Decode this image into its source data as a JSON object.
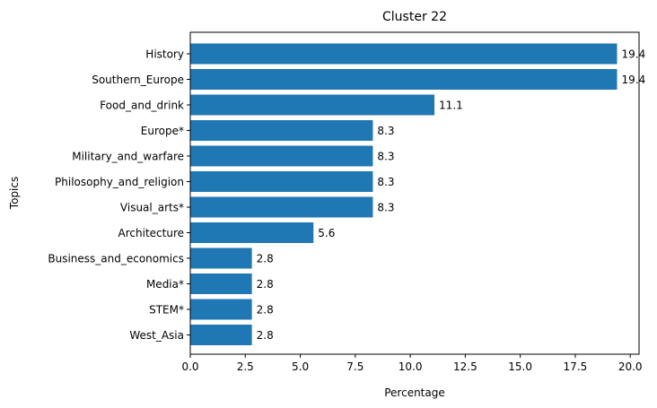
{
  "chart_data": {
    "type": "bar",
    "orientation": "horizontal",
    "title": "Cluster 22",
    "xlabel": "Percentage",
    "ylabel": "Topics",
    "categories": [
      "History",
      "Southern_Europe",
      "Food_and_drink",
      "Europe*",
      "Military_and_warfare",
      "Philosophy_and_religion",
      "Visual_arts*",
      "Architecture",
      "Business_and_economics",
      "Media*",
      "STEM*",
      "West_Asia"
    ],
    "values": [
      19.4,
      19.4,
      11.1,
      8.3,
      8.3,
      8.3,
      8.3,
      5.6,
      2.8,
      2.8,
      2.8,
      2.8
    ],
    "data_labels": [
      "19.4",
      "19.4",
      "11.1",
      "8.3",
      "8.3",
      "8.3",
      "8.3",
      "5.6",
      "2.8",
      "2.8",
      "2.8",
      "2.8"
    ],
    "xlim": [
      0,
      20.4
    ],
    "xticks": [
      0.0,
      2.5,
      5.0,
      7.5,
      10.0,
      12.5,
      15.0,
      17.5,
      20.0
    ],
    "xtick_labels": [
      "0.0",
      "2.5",
      "5.0",
      "7.5",
      "10.0",
      "12.5",
      "15.0",
      "17.5",
      "20.0"
    ],
    "bar_color": "#1f77b4",
    "grid": false,
    "legend": false
  }
}
